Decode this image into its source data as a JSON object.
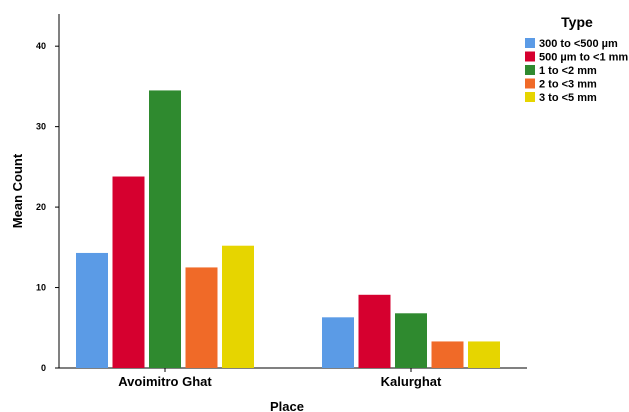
{
  "chart_data": {
    "type": "bar",
    "categories": [
      "Avoimitro Ghat",
      "Kalurghat"
    ],
    "series": [
      {
        "name": "300 to <500 µm",
        "values": [
          14.3,
          6.3
        ],
        "color": "#5b9be6"
      },
      {
        "name": "500 µm to <1 mm",
        "values": [
          23.8,
          9.1
        ],
        "color": "#d6002f"
      },
      {
        "name": "1 to <2 mm",
        "values": [
          34.5,
          6.8
        ],
        "color": "#2f8a2f"
      },
      {
        "name": "2 to <3 mm",
        "values": [
          12.5,
          3.3
        ],
        "color": "#f06a28"
      },
      {
        "name": "3 to <5 mm",
        "values": [
          15.2,
          3.3
        ],
        "color": "#e6d500"
      }
    ],
    "xlabel": "Place",
    "ylabel": "Mean Count",
    "ylim": [
      0,
      44
    ],
    "yticks": [
      "0",
      "10",
      "20",
      "30",
      "40"
    ],
    "legend_title": "Type",
    "legend_position": "top-right",
    "grid": false
  }
}
